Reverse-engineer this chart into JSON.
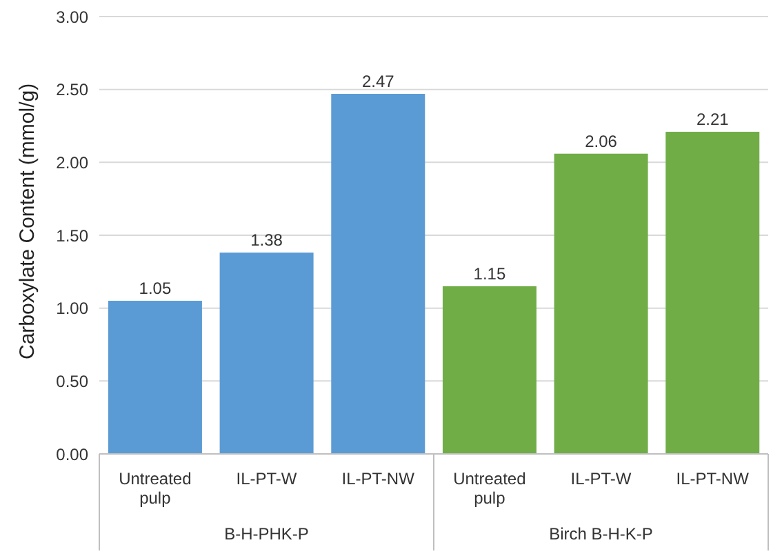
{
  "chart_data": {
    "type": "bar",
    "ylabel": "Carboxylate Content (mmol/g)",
    "categories": [
      "Untreated pulp",
      "IL-PT-W",
      "IL-PT-NW",
      "Untreated pulp",
      "IL-PT-W",
      "IL-PT-NW"
    ],
    "values": [
      1.05,
      1.38,
      2.47,
      1.15,
      2.06,
      2.21
    ],
    "colors": [
      "#5b9bd5",
      "#5b9bd5",
      "#5b9bd5",
      "#70ad47",
      "#70ad47",
      "#70ad47"
    ],
    "ylim": [
      0,
      3
    ],
    "yticks": [
      {
        "value": 0,
        "label": "0.00"
      },
      {
        "value": 0.5,
        "label": "0.50"
      },
      {
        "value": 1,
        "label": "1.00"
      },
      {
        "value": 1.5,
        "label": "1.50"
      },
      {
        "value": 2,
        "label": "2.00"
      },
      {
        "value": 2.5,
        "label": "2.50"
      },
      {
        "value": 3,
        "label": "3.00"
      }
    ],
    "grid": "y",
    "data_labels": true,
    "legend": false,
    "annotations": [
      "B-H-PHK-P",
      "Birch  B-H-K-P"
    ]
  }
}
